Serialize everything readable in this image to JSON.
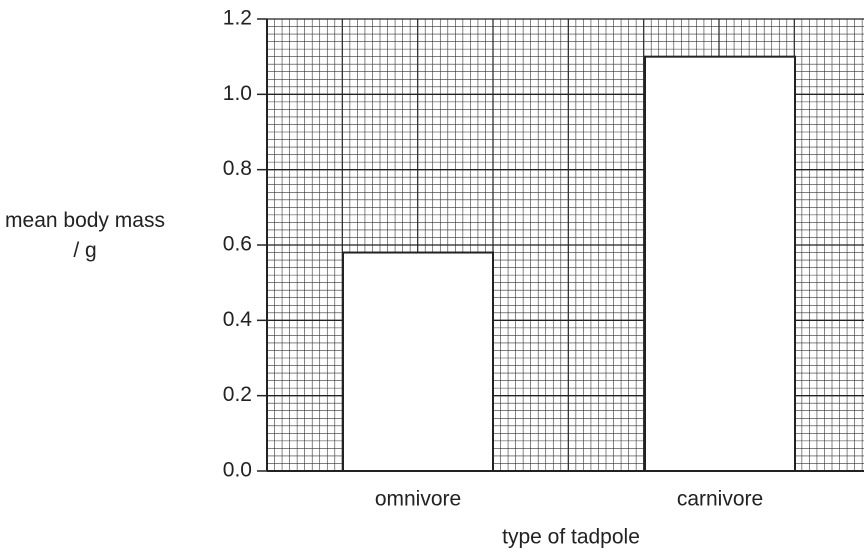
{
  "chart_data": {
    "type": "bar",
    "categories": [
      "omnivore",
      "carnivore"
    ],
    "values": [
      0.58,
      1.1
    ],
    "color": "#ffffff",
    "xlabel": "type of tadpole",
    "ylabel": "mean body mass / g",
    "ylim": [
      0,
      1.2
    ],
    "yticks": [
      {
        "value": 0,
        "label": "0.0"
      },
      0.2,
      0.4,
      0.6,
      0.8,
      {
        "value": 1.0,
        "label": "1.0"
      },
      1.2
    ],
    "grid": true
  }
}
